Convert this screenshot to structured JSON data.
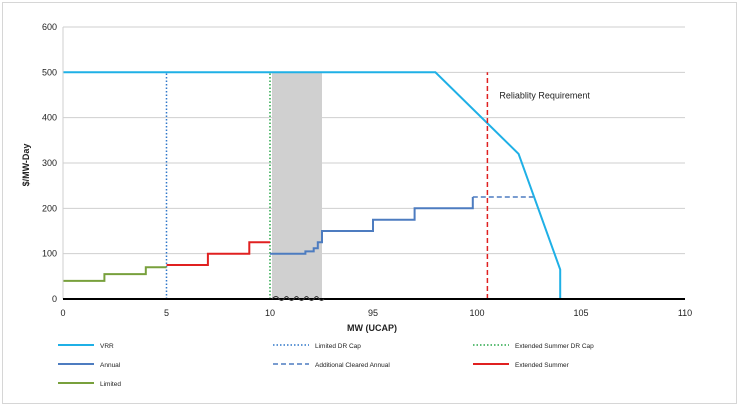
{
  "chart_data": {
    "type": "line",
    "title": "",
    "xlabel": "MW (UCAP)",
    "ylabel": "$/MW-Day",
    "ylim": [
      0,
      600
    ],
    "y_ticks": [
      "0",
      "100",
      "200",
      "300",
      "400",
      "500",
      "600"
    ],
    "x_ticks": [
      "0",
      "5",
      "10",
      "95",
      "100",
      "105",
      "110"
    ],
    "grid": "horizontal",
    "legend_position": "bottom",
    "axis_break": "wavy break marks on x-axis between 10 and 95",
    "shaded_region": {
      "x_from": 10,
      "x_to": 12.5,
      "color": "#d0d0d0"
    },
    "annotations": [
      {
        "text": "Reliablity Requirement",
        "x": 100.5,
        "y": 420
      }
    ],
    "series": [
      {
        "name": "VRR",
        "color": "#1fb0e6",
        "style": "solid",
        "points": [
          [
            0,
            500
          ],
          [
            98,
            500
          ],
          [
            102,
            320
          ],
          [
            104,
            65
          ],
          [
            104,
            0
          ]
        ]
      },
      {
        "name": "Limited DR Cap",
        "color": "#2f77c9",
        "style": "dotted",
        "points": [
          [
            5,
            0
          ],
          [
            5,
            500
          ]
        ]
      },
      {
        "name": "Extended Summer DR Cap",
        "color": "#2aa84a",
        "style": "dotted",
        "points": [
          [
            10,
            0
          ],
          [
            10,
            500
          ]
        ]
      },
      {
        "name": "Annual",
        "color": "#4d7cc0",
        "style": "solid",
        "points": [
          [
            10,
            100
          ],
          [
            11.7,
            100
          ],
          [
            11.7,
            105
          ],
          [
            12.1,
            105
          ],
          [
            12.1,
            112
          ],
          [
            12.3,
            112
          ],
          [
            12.3,
            125
          ],
          [
            93,
            125
          ],
          [
            93,
            150
          ],
          [
            95,
            150
          ],
          [
            95,
            175
          ],
          [
            97,
            175
          ],
          [
            97,
            200
          ],
          [
            99.8,
            200
          ],
          [
            99.8,
            225
          ]
        ]
      },
      {
        "name": "Additional Cleared Annual",
        "color": "#4d7cc0",
        "style": "dashed",
        "points": [
          [
            99.8,
            225
          ],
          [
            102.7,
            225
          ]
        ]
      },
      {
        "name": "Extended Summer",
        "color": "#e02020",
        "style": "solid",
        "points": [
          [
            5,
            75
          ],
          [
            7,
            75
          ],
          [
            7,
            100
          ],
          [
            9,
            100
          ],
          [
            9,
            125
          ],
          [
            10,
            125
          ]
        ]
      },
      {
        "name": "Limited",
        "color": "#78a03c",
        "style": "solid",
        "points": [
          [
            0,
            40
          ],
          [
            2,
            40
          ],
          [
            2,
            55
          ],
          [
            4,
            55
          ],
          [
            4,
            70
          ],
          [
            5,
            70
          ]
        ]
      },
      {
        "name": "Reliability Requirement",
        "color": "#e02020",
        "style": "dashed",
        "points": [
          [
            100.5,
            0
          ],
          [
            100.5,
            500
          ]
        ]
      }
    ],
    "legend": [
      {
        "label": "VRR",
        "color": "#1fb0e6",
        "style": "solid"
      },
      {
        "label": "Limited DR Cap",
        "color": "#2f77c9",
        "style": "dotted"
      },
      {
        "label": "Extended Summer DR Cap",
        "color": "#2aa84a",
        "style": "dotted"
      },
      {
        "label": "Annual",
        "color": "#4d7cc0",
        "style": "solid"
      },
      {
        "label": "Additional Cleared Annual",
        "color": "#4d7cc0",
        "style": "dashed"
      },
      {
        "label": "Extended Summer",
        "color": "#e02020",
        "style": "solid"
      },
      {
        "label": "Limited",
        "color": "#78a03c",
        "style": "solid"
      }
    ]
  }
}
